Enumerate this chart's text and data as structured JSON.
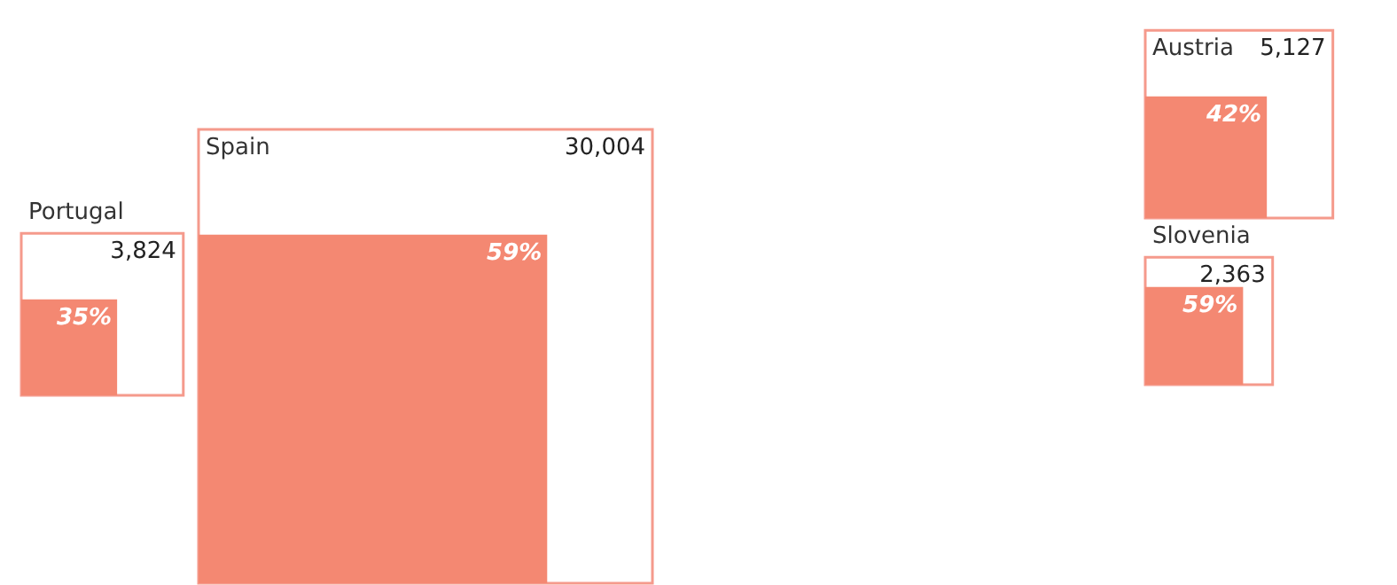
{
  "chart_data": {
    "type": "other",
    "categories": [
      "Portugal",
      "Spain",
      "Austria",
      "Slovenia"
    ],
    "series": [
      {
        "color": "#f59a8c",
        "values": [
          3824,
          30004,
          5127,
          2363
        ],
        "value_labels": [
          "3,824",
          "30,004",
          "5,127",
          "2,363"
        ]
      },
      {
        "color": "#f48872",
        "values": [
          35,
          59,
          42,
          59
        ],
        "value_labels": [
          "35%",
          "59%",
          "42%",
          "59%"
        ]
      }
    ]
  }
}
